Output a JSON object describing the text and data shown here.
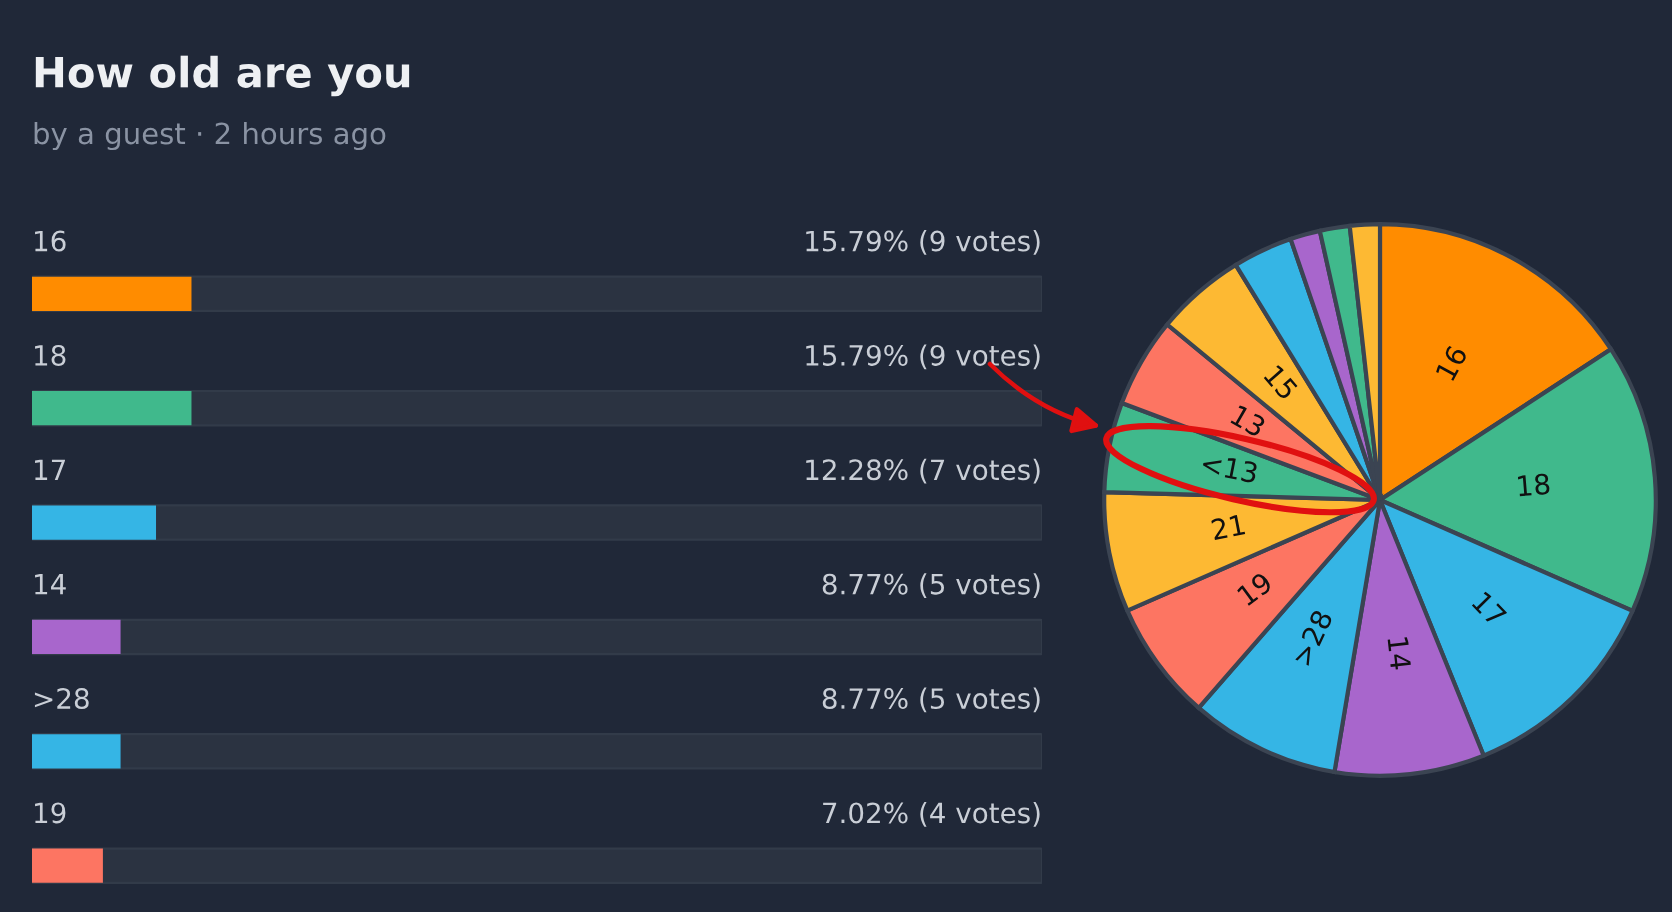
{
  "chart_data": [
    {
      "type": "bar",
      "orientation": "horizontal",
      "title": "How old are you",
      "subtitle": "by a guest · 2 hours ago",
      "categories": [
        "16",
        "18",
        "17",
        "14",
        ">28",
        "19"
      ],
      "values": [
        15.79,
        15.79,
        12.28,
        8.77,
        8.77,
        7.02
      ],
      "colors": [
        "#ff8c00",
        "#40b98c",
        "#35b5e5",
        "#a866cc",
        "#35b5e5",
        "#fd7562"
      ],
      "value_labels": [
        "15.79% (9 votes)",
        "15.79% (9 votes)",
        "12.28% (7 votes)",
        "8.77% (5 votes)",
        "8.77% (5 votes)",
        "7.02% (4 votes)"
      ],
      "xlim": [
        0,
        100
      ],
      "legend": false
    },
    {
      "type": "pie",
      "categories": [
        "16",
        "18",
        "17",
        "14",
        ">28",
        "19",
        "21",
        "<13",
        "13",
        "15",
        null,
        null,
        null,
        null
      ],
      "values": [
        15.79,
        15.79,
        12.28,
        8.77,
        8.77,
        7.02,
        7.02,
        5.26,
        5.26,
        5.26,
        3.51,
        1.75,
        1.75,
        1.75
      ],
      "colors": [
        "#ff8c00",
        "#40b98c",
        "#35b5e5",
        "#a866cc",
        "#35b5e5",
        "#fd7562",
        "#fdb933",
        "#40b98c",
        "#fd7562",
        "#fdb933",
        "#35b5e5",
        "#a866cc",
        "#40b98c",
        "#fdb933"
      ],
      "legend": false
    }
  ]
}
